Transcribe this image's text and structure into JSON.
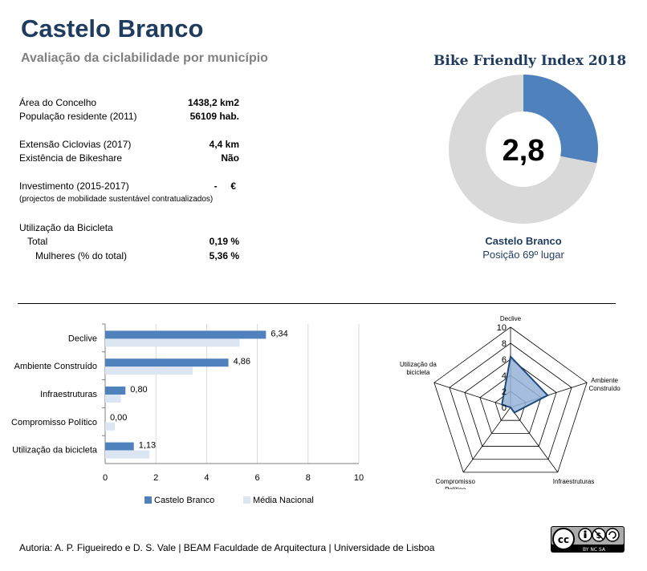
{
  "header": {
    "title": "Castelo Branco",
    "subtitle": "Avaliação da ciclabilidade por município"
  },
  "stats": [
    {
      "label": "Área do Concelho",
      "value": "1438,2 km2"
    },
    {
      "label": "População residente (2011)",
      "value": "56109 hab."
    },
    {
      "label": "Extensão Ciclovias (2017)",
      "value": "4,4 km"
    },
    {
      "label": "Existência de Bikeshare",
      "value": "Não"
    },
    {
      "label": "Investimento (2015-2017)",
      "value": "-     €"
    },
    {
      "label": "(projectos de mobilidade sustentável contratualizados)",
      "value": ""
    },
    {
      "label": "Utilização da Bicicleta",
      "value": ""
    },
    {
      "label": "Total",
      "value": "0,19 %"
    },
    {
      "label": "Mulheres (% do total)",
      "value": "5,36 %"
    }
  ],
  "bike_index": {
    "title": "Bike Friendly Index 2018",
    "value_label": "2,8",
    "fraction": 0.28,
    "place": "Castelo Branco",
    "rank": "Posição 69º lugar",
    "fill_color": "#4f81bd",
    "rest_color": "#d9d9d9"
  },
  "chart_data": [
    {
      "type": "bar",
      "orientation": "horizontal",
      "categories": [
        "Declive",
        "Ambiente Construído",
        "Infraestruturas",
        "Compromisso Político",
        "Utilização da bicicleta"
      ],
      "series": [
        {
          "name": "Castelo Branco",
          "values": [
            6.34,
            4.86,
            0.8,
            0.0,
            1.13
          ],
          "color": "#4f81bd"
        },
        {
          "name": "Média Nacional",
          "values": [
            5.3,
            3.45,
            0.62,
            0.38,
            1.75
          ],
          "color": "#dce6f2"
        }
      ],
      "data_labels": [
        "6,34",
        "4,86",
        "0,80",
        "0,00",
        "1,13"
      ],
      "xlim": [
        0,
        10
      ],
      "xticks": [
        0,
        2,
        4,
        6,
        8,
        10
      ],
      "legend": "bottom"
    },
    {
      "type": "radar",
      "axes": [
        "Declive",
        "Ambiente Construído",
        "Infraestruturas",
        "Compromisso Político",
        "Utilização da bicicleta"
      ],
      "axis_labels": [
        [
          "Declive"
        ],
        [
          "Ambiente",
          "Construído"
        ],
        [
          "Infraestruturas"
        ],
        [
          "Compromisso",
          "Político"
        ],
        [
          "Utilização da",
          "bicicleta"
        ]
      ],
      "series": [
        {
          "name": "Castelo Branco",
          "values": [
            6.34,
            4.86,
            0.8,
            0.0,
            1.13
          ],
          "color": "#1f497d",
          "fill": "#95b3d7"
        }
      ],
      "rlim": [
        0,
        10
      ],
      "rticks": [
        0,
        2,
        4,
        6,
        8,
        10
      ]
    }
  ],
  "footer": {
    "author": "Autoria: A. P. Figueiredo e D. S. Vale | BEAM Faculdade de Arquitectura | Universidade de Lisboa",
    "license_text": "BY   NC   SA"
  }
}
